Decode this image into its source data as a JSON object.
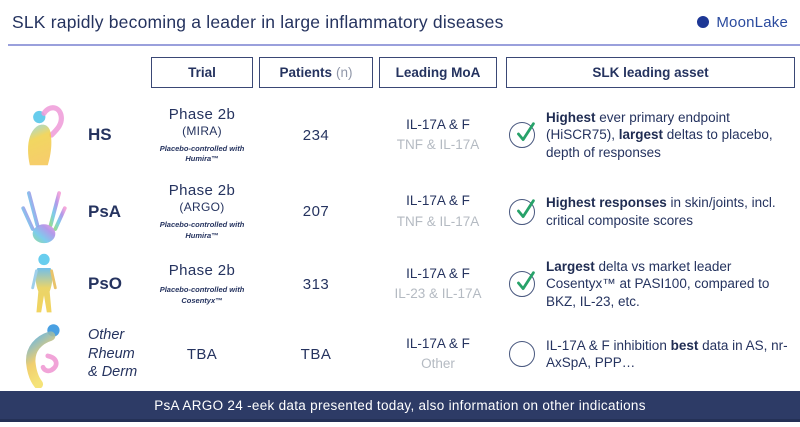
{
  "title": "SLK rapidly becoming a leader in large inflammatory diseases",
  "logo": {
    "text": "MoonLake",
    "icon": "moonlake-ring-icon"
  },
  "colors": {
    "navy": "#25335f",
    "muted": "#b4bac2",
    "green": "#27a269",
    "bar": "#2d3b66",
    "rule": "#9aa0dc",
    "logo": "#1d3795"
  },
  "table": {
    "headers": [
      {
        "label": "Trial",
        "muted": ""
      },
      {
        "label": "Patients",
        "muted": "(n)"
      },
      {
        "label": "Leading MoA",
        "muted": ""
      },
      {
        "label": "SLK leading asset",
        "muted": ""
      }
    ],
    "rows": [
      {
        "icon": "hs-figure",
        "label": "HS",
        "italic": false,
        "trial": {
          "phase": "Phase 2b",
          "name": "(MIRA)",
          "note": "Placebo-controlled with Humira™"
        },
        "patients": "234",
        "moa": {
          "primary": "IL-17A & F",
          "secondary": "TNF & IL-17A"
        },
        "checked": true,
        "asset": [
          {
            "t": "Highest",
            "b": true
          },
          {
            "t": " ever primary endpoint (HiSCR75), ",
            "b": false
          },
          {
            "t": "largest",
            "b": true
          },
          {
            "t": " deltas to placebo, depth of responses",
            "b": false
          }
        ]
      },
      {
        "icon": "psa-figure",
        "label": "PsA",
        "italic": false,
        "trial": {
          "phase": "Phase 2b",
          "name": "(ARGO)",
          "note": "Placebo-controlled with Humira™"
        },
        "patients": "207",
        "moa": {
          "primary": "IL-17A & F",
          "secondary": "TNF & IL-17A"
        },
        "checked": true,
        "asset": [
          {
            "t": "Highest responses",
            "b": true
          },
          {
            "t": " in skin/joints, incl. critical composite scores",
            "b": false
          }
        ]
      },
      {
        "icon": "pso-figure",
        "label": "PsO",
        "italic": false,
        "trial": {
          "phase": "Phase 2b",
          "name": "",
          "note": "Placebo-controlled with Cosentyx™"
        },
        "patients": "313",
        "moa": {
          "primary": "IL-17A & F",
          "secondary": "IL-23 & IL-17A"
        },
        "checked": true,
        "asset": [
          {
            "t": "Largest",
            "b": true
          },
          {
            "t": " delta vs market leader Cosentyx™ at PASI100, compared to BKZ, IL-23, etc.",
            "b": false
          }
        ]
      },
      {
        "icon": "other-figure",
        "label": "Other Rheum & Derm",
        "italic": true,
        "trial": {
          "phase": "TBA",
          "name": "",
          "note": ""
        },
        "patients": "TBA",
        "moa": {
          "primary": "IL-17A & F",
          "secondary": "Other"
        },
        "checked": false,
        "asset": [
          {
            "t": "IL-17A & F inhibition ",
            "b": false
          },
          {
            "t": "best",
            "b": true
          },
          {
            "t": " data in AS, nr-AxSpA, PPP…",
            "b": false
          }
        ]
      }
    ]
  },
  "footer": {
    "text": "PsA ARGO 24 -eek data presented today, also information on other indications"
  }
}
